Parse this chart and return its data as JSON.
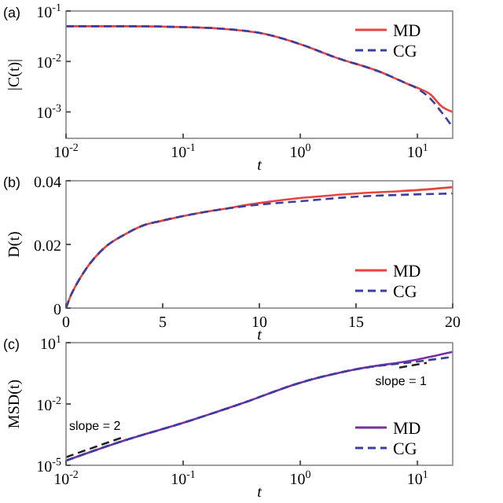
{
  "chart_data": [
    {
      "type": "line",
      "title": "(a)",
      "xlabel": "t",
      "ylabel": "|C(t)|",
      "log": "xy",
      "xlim": [
        0.01,
        20
      ],
      "ylim": [
        0.0003,
        0.1
      ],
      "xticks": [
        {
          "value": 0.01,
          "label": "10$^{-2}$"
        },
        {
          "value": 0.1,
          "label": "10$^{-1}$"
        },
        {
          "value": 1,
          "label": "10$^{0}$"
        },
        {
          "value": 10,
          "label": "10$^{1}$"
        }
      ],
      "yticks": [
        {
          "value": 0.001,
          "label": "10$^{-3}$"
        },
        {
          "value": 0.01,
          "label": "10$^{-2}$"
        },
        {
          "value": 0.1,
          "label": "10$^{-1}$"
        }
      ],
      "x": [
        0.01,
        0.03,
        0.1,
        0.2,
        0.5,
        1,
        2,
        5,
        8,
        10,
        13,
        16,
        20
      ],
      "series": [
        {
          "name": "MD",
          "color": "#e8433f",
          "line_style": "solid",
          "values": [
            0.05,
            0.05,
            0.048,
            0.045,
            0.035,
            0.022,
            0.012,
            0.006,
            0.0037,
            0.003,
            0.0022,
            0.0013,
            0.001
          ]
        },
        {
          "name": "CG",
          "color": "#3a3fa0",
          "line_style": "dashed",
          "values": [
            0.05,
            0.05,
            0.048,
            0.045,
            0.035,
            0.022,
            0.012,
            0.006,
            0.0037,
            0.0029,
            0.0018,
            0.001,
            0.0005
          ]
        }
      ],
      "legend": "top right"
    },
    {
      "type": "line",
      "title": "(b)",
      "xlabel": "t",
      "ylabel": "D(t)",
      "xlim": [
        0,
        20
      ],
      "ylim": [
        0,
        0.04
      ],
      "xticks": [
        0,
        5,
        10,
        15,
        20
      ],
      "yticks": [
        0,
        0.02,
        0.04
      ],
      "x": [
        0,
        0.25,
        0.5,
        1,
        2,
        3,
        4,
        5,
        7,
        8,
        10,
        12,
        15,
        18,
        20
      ],
      "series": [
        {
          "name": "MD",
          "color": "#e8433f",
          "line_style": "solid",
          "values": [
            0,
            0.004,
            0.007,
            0.012,
            0.019,
            0.023,
            0.026,
            0.0275,
            0.03,
            0.031,
            0.033,
            0.0345,
            0.036,
            0.037,
            0.038
          ]
        },
        {
          "name": "CG",
          "color": "#3a3fa0",
          "line_style": "dashed",
          "values": [
            0,
            0.004,
            0.007,
            0.012,
            0.019,
            0.023,
            0.026,
            0.0275,
            0.03,
            0.031,
            0.0325,
            0.0335,
            0.035,
            0.0357,
            0.036
          ]
        }
      ],
      "legend": "bottom right"
    },
    {
      "type": "line",
      "title": "(c)",
      "xlabel": "t",
      "ylabel": "MSD(t)",
      "log": "xy",
      "xlim": [
        0.01,
        20
      ],
      "ylim": [
        1e-05,
        10
      ],
      "xticks": [
        {
          "value": 0.01,
          "label": "10$^{-2}$"
        },
        {
          "value": 0.1,
          "label": "10$^{-1}$"
        },
        {
          "value": 1,
          "label": "10$^{0}$"
        },
        {
          "value": 10,
          "label": "10$^{1}$"
        }
      ],
      "yticks": [
        {
          "value": 1e-05,
          "label": "10$^{-5}$"
        },
        {
          "value": 0.01,
          "label": "10$^{-2}$"
        },
        {
          "value": 10,
          "label": "10$^{1}$"
        }
      ],
      "x": [
        0.01,
        0.03,
        0.1,
        0.3,
        1,
        3,
        10,
        20
      ],
      "series": [
        {
          "name": "MD",
          "color": "#7a2fa0",
          "line_style": "solid",
          "values": [
            1.7e-05,
            0.00015,
            0.0012,
            0.0095,
            0.11,
            0.5,
            1.5,
            3.5
          ]
        },
        {
          "name": "CG",
          "color": "#3a3fa0",
          "line_style": "dashed",
          "values": [
            1.7e-05,
            0.00015,
            0.0012,
            0.0095,
            0.11,
            0.5,
            1.2,
            2.0
          ]
        },
        {
          "color": "#222222",
          "line_style": "dashed",
          "x": [
            0.01,
            0.03
          ],
          "values": [
            2.5e-05,
            0.000225
          ]
        },
        {
          "color": "#222222",
          "line_style": "dashed",
          "x": [
            7,
            12
          ],
          "values": [
            0.6,
            1.03
          ]
        }
      ],
      "annotations": [
        "slope = 2",
        "slope = 1"
      ],
      "legend": "bottom right"
    }
  ]
}
